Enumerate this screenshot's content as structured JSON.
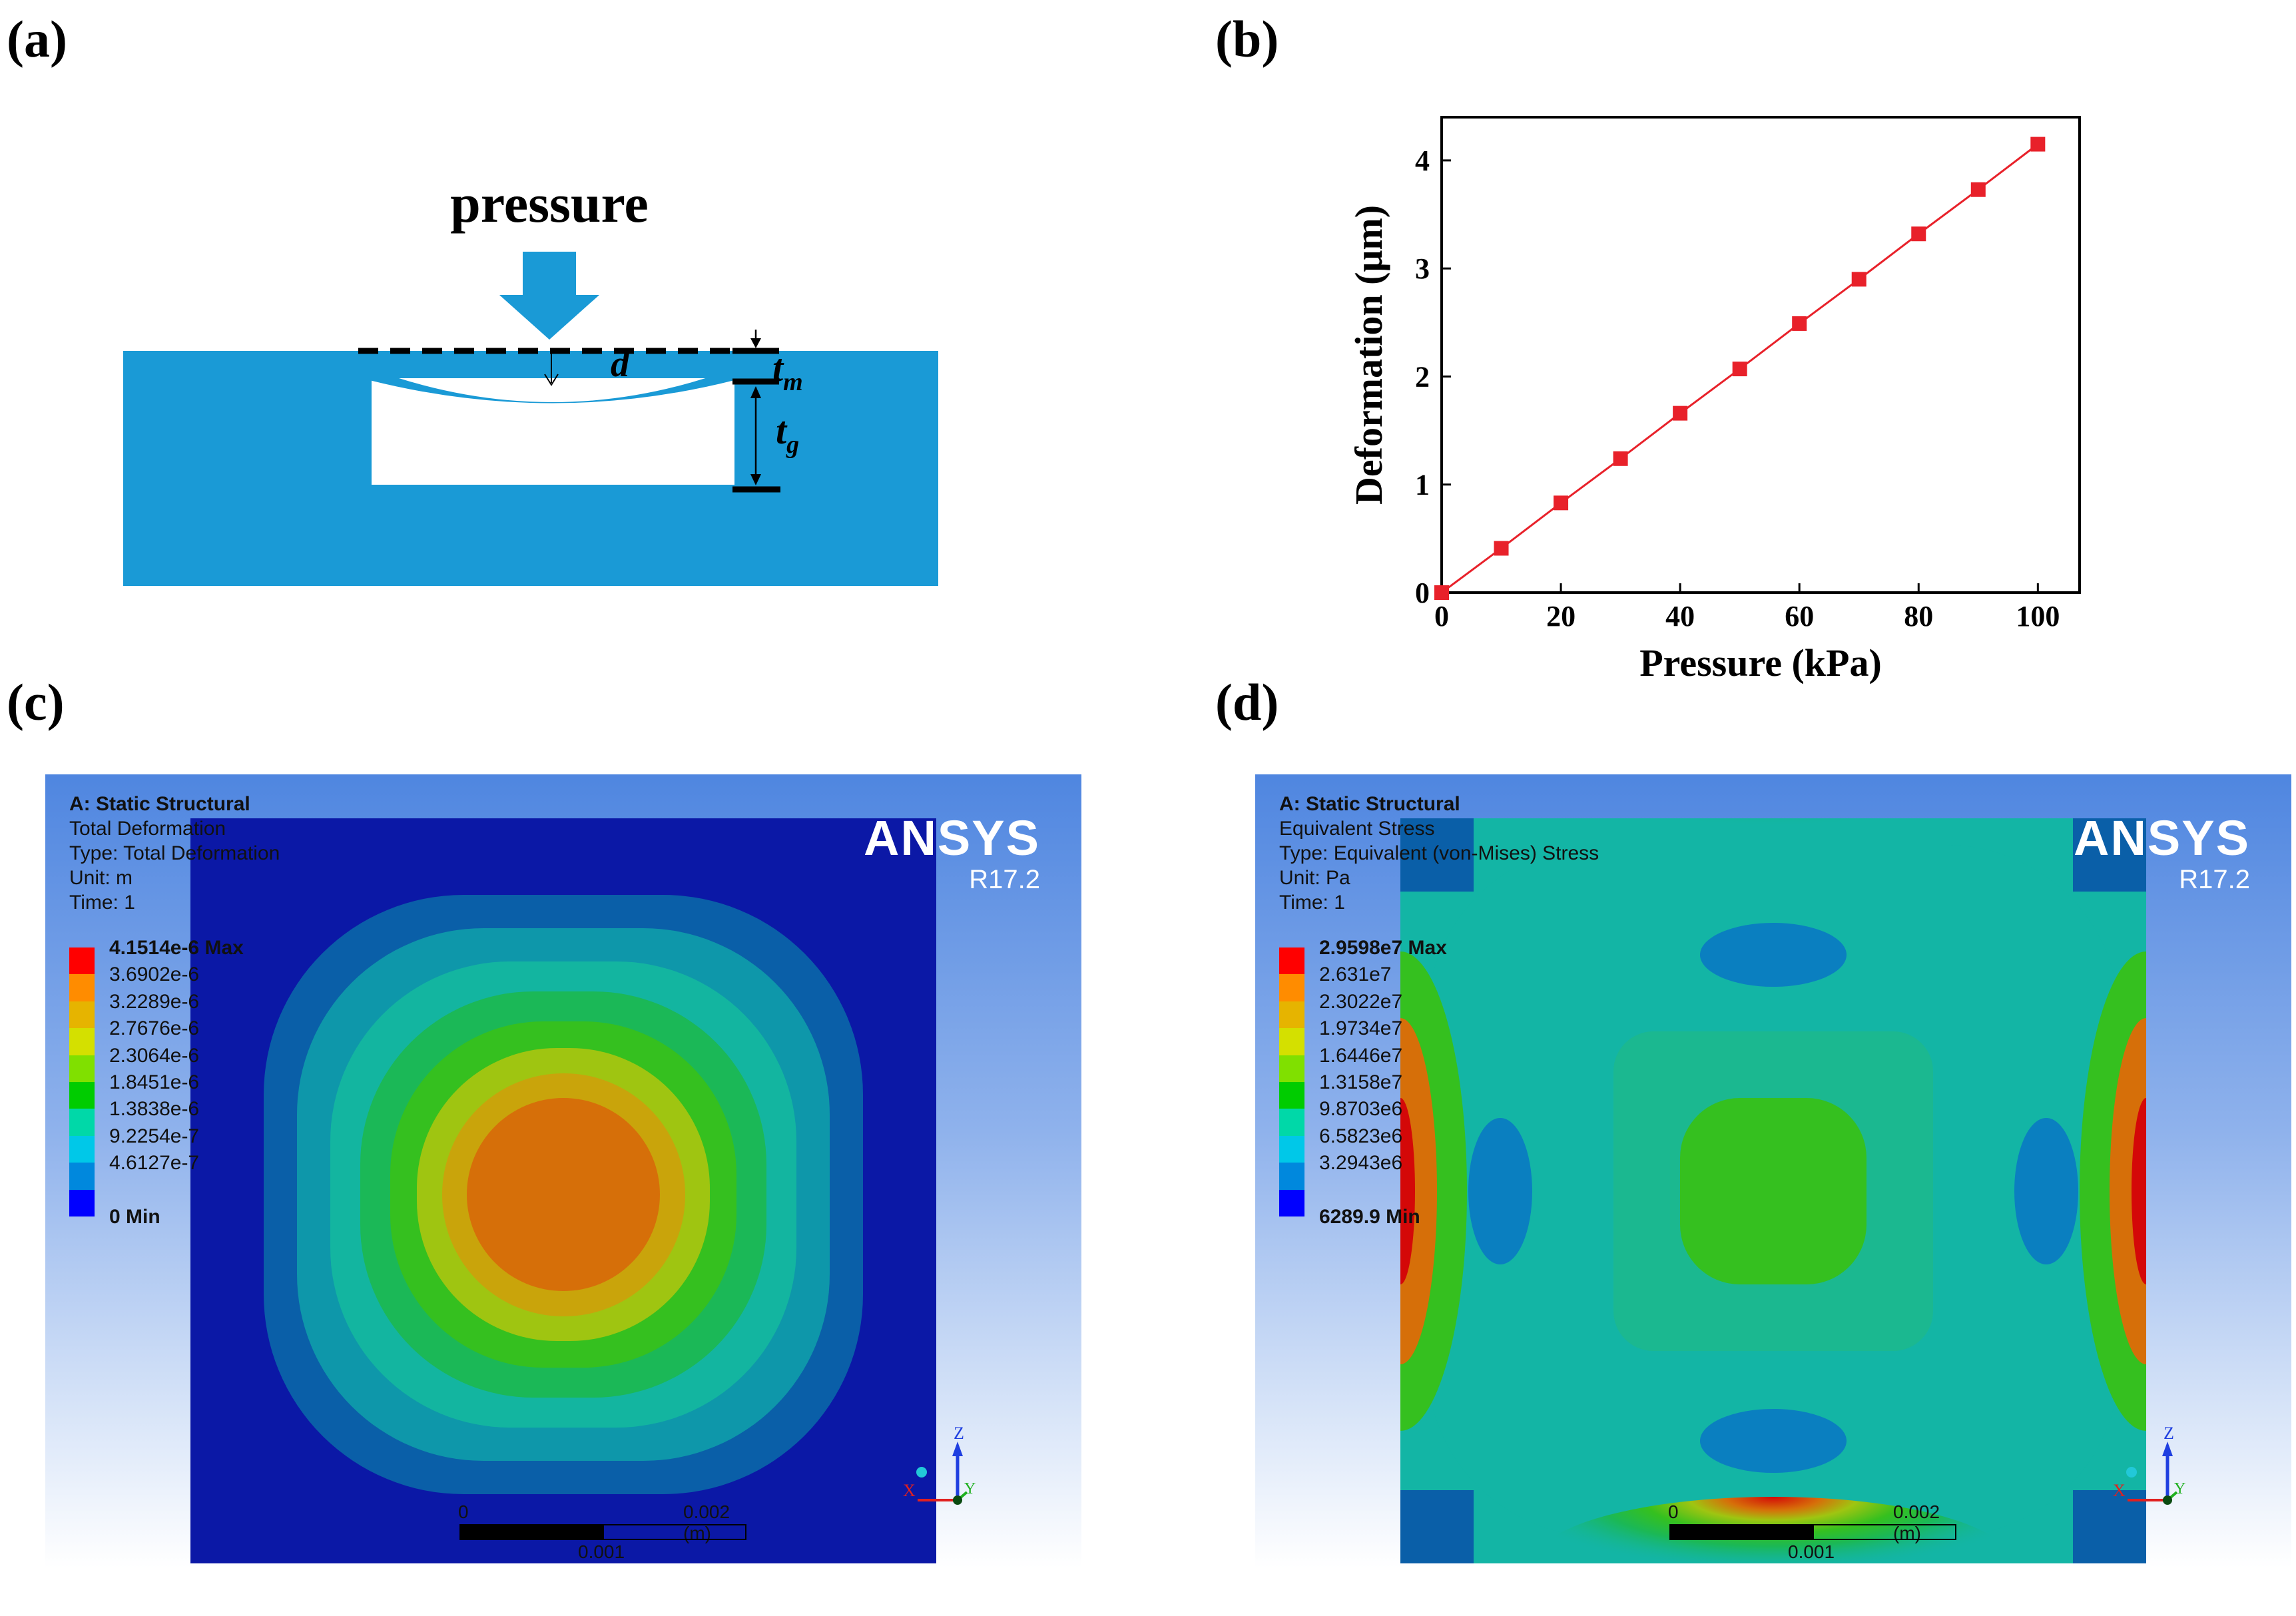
{
  "panels": {
    "a": {
      "label": "(a)",
      "pressure_text": "pressure",
      "d_label": "d",
      "tm_label": "t",
      "tm_sub": "m",
      "tg_label": "t",
      "tg_sub": "g",
      "colors": {
        "substrate": "#1a9ad6",
        "cavity": "#ffffff"
      }
    },
    "b": {
      "label": "(b)"
    },
    "c": {
      "label": "(c)",
      "header": [
        "A: Static Structural",
        "Total Deformation",
        "Type: Total Deformation",
        "Unit: m",
        "Time: 1"
      ],
      "brand": "ANSYS",
      "version": "R17.2",
      "legend": [
        "4.1514e-6 Max",
        "3.6902e-6",
        "3.2289e-6",
        "2.7676e-6",
        "2.3064e-6",
        "1.8451e-6",
        "1.3838e-6",
        "9.2254e-7",
        "4.6127e-7",
        "0 Min"
      ],
      "scale": {
        "left": "0",
        "right": "0.002 (m)",
        "mid": "0.001"
      },
      "axes": {
        "z": "Z",
        "x": "X",
        "y": "Y"
      }
    },
    "d": {
      "label": "(d)",
      "header": [
        "A: Static Structural",
        "Equivalent Stress",
        "Type: Equivalent (von-Mises) Stress",
        "Unit: Pa",
        "Time: 1"
      ],
      "brand": "ANSYS",
      "version": "R17.2",
      "legend": [
        "2.9598e7 Max",
        "2.631e7",
        "2.3022e7",
        "1.9734e7",
        "1.6446e7",
        "1.3158e7",
        "9.8703e6",
        "6.5823e6",
        "3.2943e6",
        "6289.9 Min"
      ],
      "scale": {
        "left": "0",
        "right": "0.002 (m)",
        "mid": "0.001"
      },
      "axes": {
        "z": "Z",
        "x": "X",
        "y": "Y"
      }
    }
  },
  "legend_colors": [
    "#ff0000",
    "#ff8c00",
    "#e6b400",
    "#d4e000",
    "#80e000",
    "#00cc00",
    "#00d8a8",
    "#00c8e8",
    "#0088dd",
    "#0000ff"
  ],
  "contour_colors": [
    "#0b18a6",
    "#0a5fa8",
    "#0e97aa",
    "#13b5a0",
    "#1bb857",
    "#35c01f",
    "#9fc511",
    "#c9a40b",
    "#d66f09",
    "#d40808"
  ],
  "chart_data": {
    "type": "line",
    "xlabel": "Pressure (kPa)",
    "ylabel": "Deformation (μm)",
    "xlim": [
      0,
      107
    ],
    "ylim": [
      0,
      4.4
    ],
    "xticks": [
      0,
      20,
      40,
      60,
      80,
      100
    ],
    "yticks": [
      0,
      1,
      2,
      3,
      4
    ],
    "series": [
      {
        "name": "Deformation",
        "color": "#e8212a",
        "marker": "square",
        "x": [
          0,
          10,
          20,
          30,
          40,
          50,
          60,
          70,
          80,
          90,
          100
        ],
        "y": [
          0,
          0.41,
          0.83,
          1.24,
          1.66,
          2.07,
          2.49,
          2.9,
          3.32,
          3.73,
          4.15
        ]
      }
    ]
  }
}
